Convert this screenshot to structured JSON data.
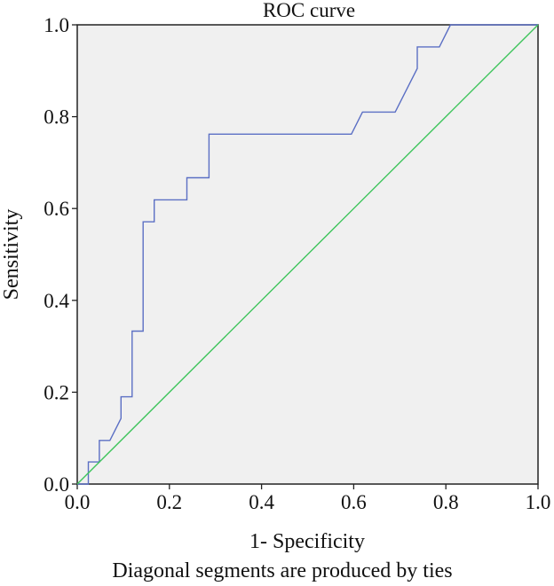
{
  "chart_data": {
    "type": "line",
    "title": "ROC curve",
    "xlabel": "1- Specificity",
    "ylabel": "Sensitivity",
    "footnote": "Diagonal segments are produced by ties",
    "xlim": [
      0,
      1
    ],
    "ylim": [
      0,
      1
    ],
    "x_ticks": [
      "0.0",
      "0.2",
      "0.4",
      "0.6",
      "0.8",
      "1.0"
    ],
    "y_ticks": [
      "0.0",
      "0.2",
      "0.4",
      "0.6",
      "0.8",
      "1.0"
    ],
    "grid": false,
    "plot_background": "#f0f0f0",
    "series": [
      {
        "color": "#5b6fc4",
        "points": [
          [
            0.0,
            0.0
          ],
          [
            0.024,
            0.0
          ],
          [
            0.024,
            0.048
          ],
          [
            0.048,
            0.048
          ],
          [
            0.048,
            0.095
          ],
          [
            0.071,
            0.095
          ],
          [
            0.095,
            0.143
          ],
          [
            0.095,
            0.19
          ],
          [
            0.119,
            0.19
          ],
          [
            0.119,
            0.333
          ],
          [
            0.143,
            0.333
          ],
          [
            0.143,
            0.571
          ],
          [
            0.167,
            0.571
          ],
          [
            0.167,
            0.619
          ],
          [
            0.238,
            0.619
          ],
          [
            0.238,
            0.667
          ],
          [
            0.286,
            0.667
          ],
          [
            0.286,
            0.762
          ],
          [
            0.595,
            0.762
          ],
          [
            0.619,
            0.81
          ],
          [
            0.69,
            0.81
          ],
          [
            0.738,
            0.905
          ],
          [
            0.738,
            0.952
          ],
          [
            0.786,
            0.952
          ],
          [
            0.81,
            1.0
          ],
          [
            1.0,
            1.0
          ]
        ]
      },
      {
        "color": "#3cc45a",
        "points": [
          [
            0,
            0
          ],
          [
            1,
            1
          ]
        ]
      }
    ]
  }
}
